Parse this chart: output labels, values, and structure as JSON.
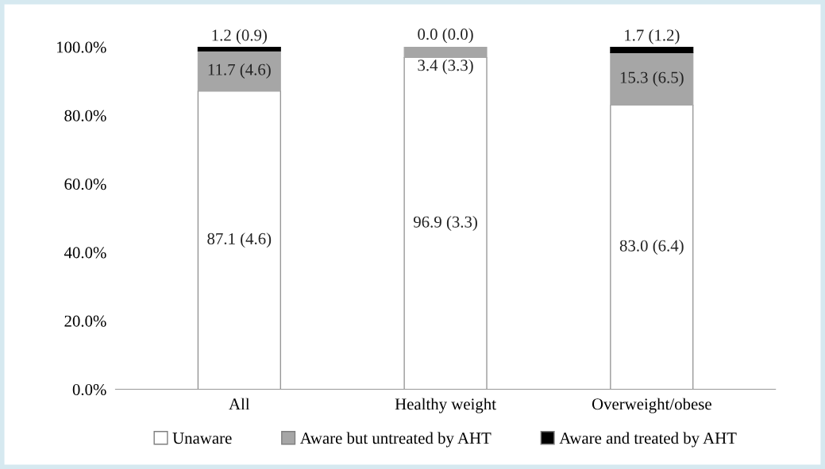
{
  "chart_data": {
    "type": "bar",
    "stacked": true,
    "categories": [
      "All",
      "Healthy weight",
      "Overweight/obese"
    ],
    "series": [
      {
        "name": "Unaware",
        "color": "#ffffff",
        "values": [
          87.1,
          96.9,
          83.0
        ],
        "value_labels": [
          "87.1 (4.6)",
          "96.9 (3.3)",
          "83.0 (6.4)"
        ]
      },
      {
        "name": "Aware but untreated by AHT",
        "color": "#a6a6a6",
        "values": [
          11.7,
          3.4,
          15.3
        ],
        "value_labels": [
          "11.7 (4.6)",
          "3.4 (3.3)",
          "15.3 (6.5)"
        ]
      },
      {
        "name": "Aware and treated by AHT",
        "color": "#000000",
        "values": [
          1.2,
          0.0,
          1.7
        ],
        "value_labels": [
          "1.2 (0.9)",
          "0.0 (0.0)",
          "1.7 (1.2)"
        ]
      }
    ],
    "ylim": [
      0,
      100
    ],
    "yticks": [
      {
        "value": 0,
        "label": "0.0%"
      },
      {
        "value": 20,
        "label": "20.0%"
      },
      {
        "value": 40,
        "label": "40.0%"
      },
      {
        "value": 60,
        "label": "60.0%"
      },
      {
        "value": 80,
        "label": "80.0%"
      },
      {
        "value": 100,
        "label": "100.0%"
      }
    ],
    "grid": false,
    "legend": "bottom"
  }
}
